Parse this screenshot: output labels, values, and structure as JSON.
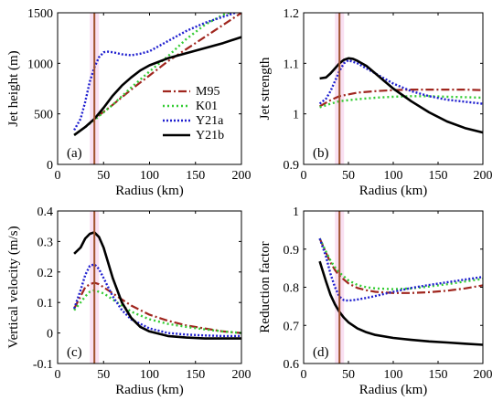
{
  "chart_data": [
    {
      "type": "line",
      "panel_label": "(a)",
      "xlabel": "Radius (km)",
      "ylabel": "Jet height (m)",
      "xlim": [
        0,
        200
      ],
      "ylim": [
        0,
        1500
      ],
      "xticks": [
        0,
        50,
        100,
        150,
        200
      ],
      "yticks": [
        0,
        500,
        1000,
        1500
      ],
      "vline_x": 40,
      "legend": {
        "placement": "right-center",
        "entries": [
          "M95",
          "K01",
          "Y21a",
          "Y21b"
        ]
      },
      "series": [
        {
          "name": "M95",
          "x": [
            18,
            30,
            40,
            60,
            80,
            100,
            120,
            140,
            160,
            180,
            200
          ],
          "y": [
            290,
            370,
            450,
            590,
            740,
            880,
            1020,
            1140,
            1260,
            1380,
            1500
          ]
        },
        {
          "name": "K01",
          "x": [
            18,
            30,
            40,
            60,
            80,
            100,
            120,
            140,
            160,
            180,
            200
          ],
          "y": [
            290,
            370,
            440,
            590,
            760,
            920,
            1070,
            1240,
            1380,
            1480,
            1540
          ]
        },
        {
          "name": "Y21a",
          "x": [
            18,
            25,
            30,
            35,
            40,
            45,
            50,
            55,
            60,
            70,
            80,
            90,
            100,
            120,
            140,
            160,
            180,
            200
          ],
          "y": [
            340,
            450,
            620,
            820,
            960,
            1060,
            1110,
            1115,
            1110,
            1090,
            1080,
            1095,
            1120,
            1220,
            1320,
            1400,
            1460,
            1520
          ]
        },
        {
          "name": "Y21b",
          "x": [
            18,
            30,
            40,
            50,
            60,
            70,
            80,
            90,
            100,
            120,
            140,
            160,
            180,
            200
          ],
          "y": [
            290,
            370,
            450,
            560,
            680,
            780,
            860,
            930,
            980,
            1050,
            1100,
            1150,
            1200,
            1260
          ]
        }
      ]
    },
    {
      "type": "line",
      "panel_label": "(b)",
      "xlabel": "Radius (km)",
      "ylabel": "Jet strength",
      "xlim": [
        0,
        200
      ],
      "ylim": [
        0.9,
        1.2
      ],
      "xticks": [
        0,
        50,
        100,
        150,
        200
      ],
      "yticks": [
        0.9,
        1,
        1.1,
        1.2
      ],
      "vline_x": 40,
      "series": [
        {
          "name": "M95",
          "x": [
            18,
            30,
            40,
            60,
            80,
            100,
            120,
            140,
            160,
            180,
            200
          ],
          "y": [
            1.015,
            1.027,
            1.035,
            1.042,
            1.045,
            1.047,
            1.048,
            1.048,
            1.048,
            1.048,
            1.047
          ]
        },
        {
          "name": "K01",
          "x": [
            18,
            30,
            40,
            60,
            80,
            100,
            120,
            140,
            160,
            180,
            200
          ],
          "y": [
            1.013,
            1.02,
            1.025,
            1.029,
            1.032,
            1.034,
            1.035,
            1.035,
            1.034,
            1.033,
            1.032
          ]
        },
        {
          "name": "Y21a",
          "x": [
            18,
            25,
            30,
            35,
            40,
            45,
            50,
            60,
            70,
            80,
            90,
            100,
            120,
            140,
            160,
            180,
            200
          ],
          "y": [
            1.02,
            1.03,
            1.045,
            1.065,
            1.085,
            1.1,
            1.106,
            1.1,
            1.09,
            1.08,
            1.07,
            1.06,
            1.045,
            1.035,
            1.028,
            1.024,
            1.02
          ]
        },
        {
          "name": "Y21b",
          "x": [
            18,
            25,
            30,
            35,
            40,
            45,
            50,
            55,
            60,
            70,
            80,
            90,
            100,
            120,
            140,
            160,
            180,
            200
          ],
          "y": [
            1.07,
            1.072,
            1.08,
            1.09,
            1.1,
            1.107,
            1.11,
            1.109,
            1.105,
            1.095,
            1.08,
            1.065,
            1.05,
            1.025,
            1.003,
            0.985,
            0.972,
            0.963
          ]
        }
      ]
    },
    {
      "type": "line",
      "panel_label": "(c)",
      "xlabel": "Radius (km)",
      "ylabel": "Vertical velocity (m/s)",
      "xlim": [
        0,
        200
      ],
      "ylim": [
        -0.1,
        0.4
      ],
      "xticks": [
        0,
        50,
        100,
        150,
        200
      ],
      "yticks": [
        -0.1,
        0,
        0.1,
        0.2,
        0.3,
        0.4
      ],
      "vline_x": 40,
      "series": [
        {
          "name": "M95",
          "x": [
            18,
            25,
            30,
            35,
            40,
            45,
            50,
            60,
            70,
            80,
            100,
            120,
            140,
            160,
            180,
            200
          ],
          "y": [
            0.08,
            0.12,
            0.15,
            0.16,
            0.165,
            0.16,
            0.15,
            0.13,
            0.11,
            0.09,
            0.06,
            0.04,
            0.025,
            0.015,
            0.005,
            0.0
          ]
        },
        {
          "name": "K01",
          "x": [
            18,
            25,
            30,
            35,
            40,
            45,
            50,
            60,
            70,
            80,
            100,
            120,
            140,
            160,
            180,
            200
          ],
          "y": [
            0.075,
            0.1,
            0.12,
            0.135,
            0.14,
            0.135,
            0.13,
            0.11,
            0.09,
            0.07,
            0.045,
            0.03,
            0.02,
            0.012,
            0.005,
            0.0
          ]
        },
        {
          "name": "Y21a",
          "x": [
            18,
            25,
            30,
            35,
            40,
            45,
            50,
            60,
            70,
            80,
            100,
            120,
            140,
            160,
            180,
            200
          ],
          "y": [
            0.08,
            0.14,
            0.19,
            0.22,
            0.225,
            0.21,
            0.18,
            0.12,
            0.075,
            0.045,
            0.015,
            0.0,
            -0.005,
            -0.008,
            -0.01,
            -0.01
          ]
        },
        {
          "name": "Y21b",
          "x": [
            18,
            25,
            30,
            35,
            40,
            45,
            50,
            55,
            60,
            70,
            80,
            90,
            100,
            120,
            140,
            160,
            180,
            200
          ],
          "y": [
            0.26,
            0.28,
            0.31,
            0.325,
            0.33,
            0.315,
            0.28,
            0.23,
            0.18,
            0.1,
            0.05,
            0.02,
            0.005,
            -0.01,
            -0.015,
            -0.018,
            -0.018,
            -0.018
          ]
        }
      ]
    },
    {
      "type": "line",
      "panel_label": "(d)",
      "xlabel": "Radius (km)",
      "ylabel": "Reduction factor",
      "xlim": [
        0,
        200
      ],
      "ylim": [
        0.6,
        1.0
      ],
      "xticks": [
        0,
        50,
        100,
        150,
        200
      ],
      "yticks": [
        0.6,
        0.7,
        0.8,
        0.9,
        1
      ],
      "vline_x": 40,
      "series": [
        {
          "name": "M95",
          "x": [
            18,
            25,
            30,
            35,
            40,
            50,
            60,
            70,
            80,
            100,
            120,
            140,
            160,
            180,
            200
          ],
          "y": [
            0.928,
            0.89,
            0.865,
            0.845,
            0.83,
            0.81,
            0.798,
            0.792,
            0.788,
            0.785,
            0.785,
            0.787,
            0.791,
            0.797,
            0.805
          ]
        },
        {
          "name": "K01",
          "x": [
            18,
            25,
            30,
            35,
            40,
            50,
            60,
            70,
            80,
            100,
            120,
            140,
            160,
            180,
            200
          ],
          "y": [
            0.928,
            0.893,
            0.87,
            0.852,
            0.838,
            0.818,
            0.806,
            0.8,
            0.797,
            0.795,
            0.797,
            0.802,
            0.808,
            0.815,
            0.822
          ]
        },
        {
          "name": "Y21a",
          "x": [
            18,
            25,
            30,
            35,
            40,
            45,
            50,
            55,
            60,
            70,
            80,
            100,
            120,
            140,
            160,
            180,
            200
          ],
          "y": [
            0.928,
            0.88,
            0.835,
            0.8,
            0.775,
            0.766,
            0.765,
            0.766,
            0.768,
            0.772,
            0.777,
            0.788,
            0.798,
            0.806,
            0.813,
            0.82,
            0.827
          ]
        },
        {
          "name": "Y21b",
          "x": [
            18,
            25,
            30,
            35,
            40,
            45,
            50,
            60,
            70,
            80,
            100,
            120,
            140,
            160,
            180,
            200
          ],
          "y": [
            0.868,
            0.815,
            0.78,
            0.755,
            0.735,
            0.72,
            0.708,
            0.692,
            0.682,
            0.675,
            0.667,
            0.662,
            0.658,
            0.655,
            0.652,
            0.649
          ]
        }
      ]
    }
  ],
  "styles": {
    "series_colors": {
      "M95": "#a0261e",
      "K01": "#33cc33",
      "Y21a": "#1f1fcf",
      "Y21b": "#000000"
    },
    "vline_color": "#a0522d",
    "vline_band_color": "#f4c7e8"
  }
}
